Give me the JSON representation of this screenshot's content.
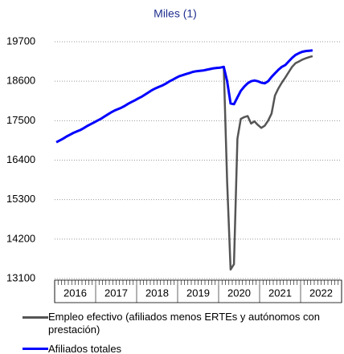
{
  "chart_data": {
    "type": "line",
    "title": "Miles (1)",
    "categories": [
      null,
      null,
      null,
      null,
      null,
      null,
      null,
      null,
      null,
      null,
      null,
      null,
      null,
      null,
      null,
      null,
      null,
      null,
      null,
      null,
      null,
      null,
      null,
      null,
      null,
      null,
      null,
      null,
      null,
      null,
      null,
      null,
      null,
      null,
      null,
      null,
      null,
      null,
      null,
      null,
      null,
      null,
      null,
      null,
      null,
      null,
      null,
      null,
      null,
      null,
      null,
      null,
      null,
      null,
      null,
      null,
      null,
      null,
      null,
      null,
      null,
      null,
      null,
      null,
      null,
      null,
      null,
      null,
      null,
      null,
      null,
      null,
      null,
      null,
      null,
      null
    ],
    "year_labels": [
      "2016",
      "2017",
      "2018",
      "2019",
      "2020",
      "2021",
      "2022"
    ],
    "series": [
      {
        "name": "Empleo efectivo (afiliados menos ERTEs y autónomos con prestación)",
        "color": "#555555",
        "values": [
          16900,
          16950,
          17000,
          17060,
          17110,
          17160,
          17200,
          17240,
          17290,
          17350,
          17400,
          17450,
          17500,
          17550,
          17610,
          17670,
          17730,
          17780,
          17820,
          17860,
          17910,
          17970,
          18020,
          18070,
          18120,
          18170,
          18230,
          18290,
          18350,
          18400,
          18440,
          18480,
          18530,
          18590,
          18640,
          18690,
          18740,
          18770,
          18800,
          18830,
          18860,
          18880,
          18890,
          18900,
          18920,
          18940,
          18960,
          18970,
          18980,
          19000,
          15800,
          13350,
          13500,
          17000,
          17550,
          17600,
          17630,
          17420,
          17480,
          17380,
          17300,
          17360,
          17500,
          17700,
          18200,
          18400,
          18560,
          18700,
          18850,
          19000,
          19100,
          19150,
          19200,
          19240,
          19270,
          19300
        ]
      },
      {
        "name": "Afiliados totales",
        "color": "#0000ff",
        "values": [
          16900,
          16950,
          17000,
          17060,
          17110,
          17160,
          17200,
          17240,
          17290,
          17350,
          17400,
          17450,
          17500,
          17550,
          17610,
          17670,
          17730,
          17780,
          17820,
          17860,
          17910,
          17970,
          18020,
          18070,
          18120,
          18170,
          18230,
          18290,
          18350,
          18400,
          18440,
          18480,
          18530,
          18590,
          18640,
          18690,
          18740,
          18770,
          18800,
          18830,
          18860,
          18880,
          18890,
          18900,
          18920,
          18940,
          18960,
          18970,
          18980,
          19000,
          18600,
          17980,
          17960,
          18150,
          18330,
          18450,
          18540,
          18600,
          18620,
          18600,
          18560,
          18540,
          18600,
          18720,
          18820,
          18920,
          19000,
          19050,
          19150,
          19250,
          19330,
          19380,
          19420,
          19440,
          19450,
          19460
        ]
      }
    ],
    "ylim": [
      13100,
      19700
    ],
    "yticks": [
      13100,
      14200,
      15300,
      16400,
      17500,
      18600,
      19700
    ],
    "grid": true
  }
}
